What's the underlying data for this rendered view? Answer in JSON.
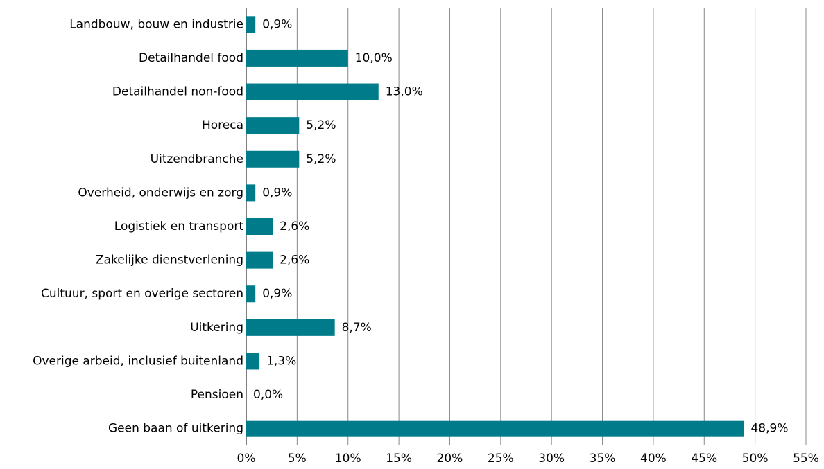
{
  "chart_data": {
    "type": "hbar",
    "categories": [
      "Landbouw, bouw en industrie",
      "Detailhandel food",
      "Detailhandel non-food",
      "Horeca",
      "Uitzendbranche",
      "Overheid, onderwijs en zorg",
      "Logistiek en transport",
      "Zakelijke dienstverlening",
      "Cultuur, sport en overige sectoren",
      "Uitkering",
      "Overige arbeid, inclusief buitenland",
      "Pensioen",
      "Geen baan of uitkering"
    ],
    "values": [
      0.9,
      10.0,
      13.0,
      5.2,
      5.2,
      0.9,
      2.6,
      2.6,
      0.9,
      8.7,
      1.3,
      0.0,
      48.9
    ],
    "value_labels": [
      "0,9%",
      "10,0%",
      "13,0%",
      "5,2%",
      "5,2%",
      "0,9%",
      "2,6%",
      "2,6%",
      "0,9%",
      "8,7%",
      "1,3%",
      "0,0%",
      "48,9%"
    ],
    "color": "#007b8a",
    "xlim": [
      0,
      55
    ],
    "xticks": [
      {
        "value": 0,
        "label": "0%"
      },
      {
        "value": 5,
        "label": "5%"
      },
      {
        "value": 10,
        "label": "10%"
      },
      {
        "value": 15,
        "label": "15%"
      },
      {
        "value": 20,
        "label": "20%"
      },
      {
        "value": 25,
        "label": "25%"
      },
      {
        "value": 30,
        "label": "30%"
      },
      {
        "value": 35,
        "label": "35%"
      },
      {
        "value": 40,
        "label": "40%"
      },
      {
        "value": 45,
        "label": "45%"
      },
      {
        "value": 50,
        "label": "50%"
      },
      {
        "value": 55,
        "label": "55%"
      }
    ],
    "grid": true
  }
}
